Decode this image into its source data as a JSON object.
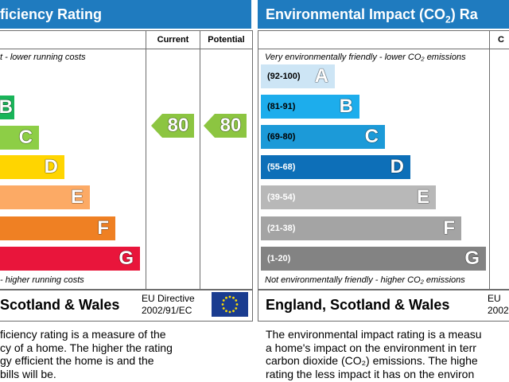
{
  "left_panel": {
    "title": "ficiency Rating",
    "col_current": "Current",
    "col_potential": "Potential",
    "top_note": "t - lower running costs",
    "bottom_note": "- higher running costs",
    "bands": [
      {
        "letter": "B",
        "color": "#19b459"
      },
      {
        "letter": "C",
        "color": "#8dce46"
      },
      {
        "letter": "D",
        "color": "#ffd500"
      },
      {
        "letter": "E",
        "color": "#fcaa65"
      },
      {
        "letter": "F",
        "color": "#ef8023"
      },
      {
        "letter": "G",
        "color": "#e9153b"
      }
    ],
    "current_value": "80",
    "potential_value": "80",
    "region": "Scotland & Wales",
    "eu_line1": "EU Directive",
    "eu_line2": "2002/91/EC",
    "eu_flag_icon": "eu-flag-icon",
    "description": [
      "ficiency rating is a measure of the",
      "cy of a home. The higher the rating",
      "gy efficient the home is and the",
      "bills will be."
    ]
  },
  "right_panel": {
    "title_prefix": "Environmental Impact (CO",
    "title_sub": "2",
    "title_suffix": ") Ra",
    "top_note": "Very environmentally friendly - lower CO₂ emissions",
    "bottom_note": "Not environmentally friendly - higher CO₂ emissions",
    "col_partial": "C",
    "bands": [
      {
        "range": "(92-100)",
        "letter": "A",
        "color": "#cde5f5"
      },
      {
        "range": "(81-91)",
        "letter": "B",
        "color": "#1dadec"
      },
      {
        "range": "(69-80)",
        "letter": "C",
        "color": "#1c9ad8"
      },
      {
        "range": "(55-68)",
        "letter": "D",
        "color": "#0d6fb8"
      },
      {
        "range": "(39-54)",
        "letter": "E",
        "color": "#b8b8b8"
      },
      {
        "range": "(21-38)",
        "letter": "F",
        "color": "#a4a4a4"
      },
      {
        "range": "(1-20)",
        "letter": "G",
        "color": "#838383"
      }
    ],
    "region": "England, Scotland & Wales",
    "eu_partial_1": "EU",
    "eu_partial_2": "2002",
    "description": [
      "The environmental impact rating is a measu",
      "a home's impact on the environment in terr",
      "carbon dioxide (CO₂) emissions. The highe",
      "rating the less impact it has on the environ"
    ]
  }
}
